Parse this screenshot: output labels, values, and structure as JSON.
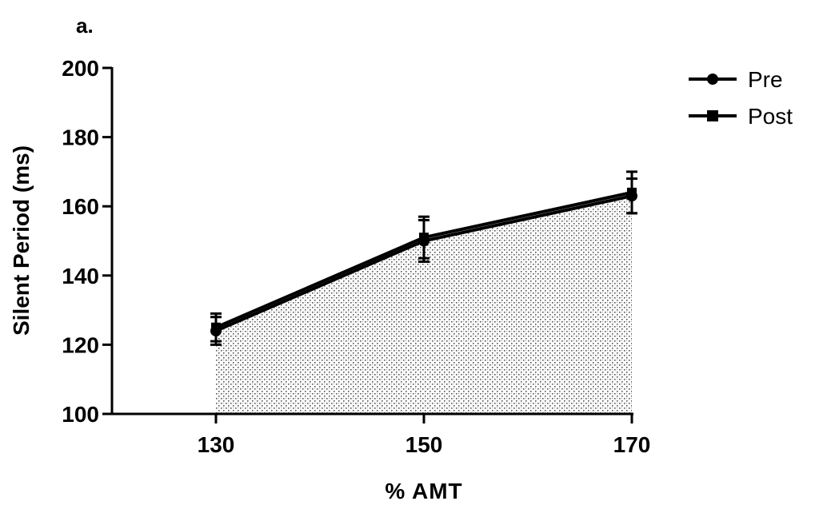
{
  "panel_label": "a.",
  "chart_data": {
    "type": "line",
    "title": "",
    "xlabel": "% AMT",
    "ylabel": "Silent Period (ms)",
    "x": [
      130,
      150,
      170
    ],
    "xlim": [
      120,
      170
    ],
    "ylim": [
      100,
      200
    ],
    "yticks": [
      100,
      120,
      140,
      160,
      180,
      200
    ],
    "xticks": [
      130,
      150,
      170
    ],
    "grid": false,
    "legend": "top-right",
    "shaded_area_under": "Pre",
    "series": [
      {
        "name": "Pre",
        "marker": "circle",
        "values": [
          124,
          150,
          163
        ],
        "error": [
          4,
          6,
          5
        ]
      },
      {
        "name": "Post",
        "marker": "square",
        "values": [
          125,
          151,
          164
        ],
        "error": [
          4,
          6,
          6
        ]
      }
    ],
    "colors": {
      "line": "#000000",
      "shade": "#555555"
    }
  }
}
